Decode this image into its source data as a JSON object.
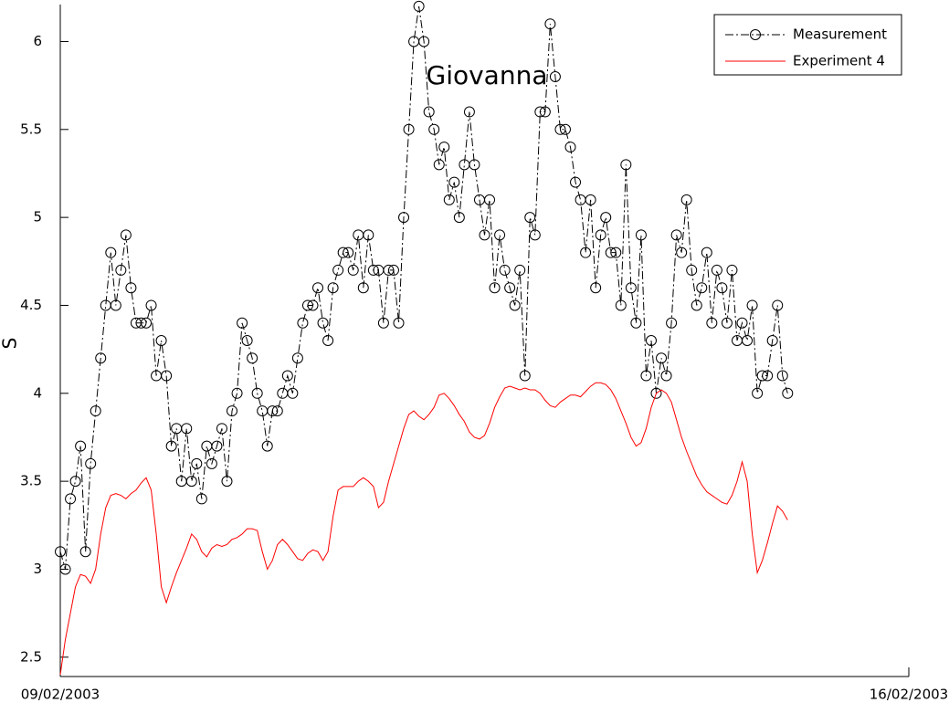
{
  "chart_data": {
    "type": "line",
    "ylabel": "S",
    "annotation": "Giovanna",
    "xlim": [
      0,
      168
    ],
    "xticks": [
      {
        "value": 0,
        "label": "09/02/2003"
      },
      {
        "value": 168,
        "label": "16/02/2003"
      }
    ],
    "ylim": [
      2.39,
      6.21
    ],
    "yticks": [
      {
        "value": 2.5,
        "label": "2.5"
      },
      3,
      {
        "value": 3.5,
        "label": "3.5"
      },
      4,
      {
        "value": 4.5,
        "label": "4.5"
      },
      5,
      {
        "value": 5.5,
        "label": "5.5"
      },
      6
    ],
    "legend": "upper right",
    "x": [
      0,
      1,
      2,
      3,
      4,
      5,
      6,
      7,
      8,
      9,
      10,
      11,
      12,
      13,
      14,
      15,
      16,
      17,
      18,
      19,
      20,
      21,
      22,
      23,
      24,
      25,
      26,
      27,
      28,
      29,
      30,
      31,
      32,
      33,
      34,
      35,
      36,
      37,
      38,
      39,
      40,
      41,
      42,
      43,
      44,
      45,
      46,
      47,
      48,
      49,
      50,
      51,
      52,
      53,
      54,
      55,
      56,
      57,
      58,
      59,
      60,
      61,
      62,
      63,
      64,
      65,
      66,
      67,
      68,
      69,
      70,
      71,
      72,
      73,
      74,
      75,
      76,
      77,
      78,
      79,
      80,
      81,
      82,
      83,
      84,
      85,
      86,
      87,
      88,
      89,
      90,
      91,
      92,
      93,
      94,
      95,
      96,
      97,
      98,
      99,
      100,
      101,
      102,
      103,
      104,
      105,
      106,
      107,
      108,
      109,
      110,
      111,
      112,
      113,
      114,
      115,
      116,
      117,
      118,
      119,
      120,
      121,
      122,
      123,
      124,
      125,
      126,
      127,
      128,
      129,
      130,
      131,
      132,
      133,
      134,
      135,
      136,
      137,
      138,
      139,
      140,
      141,
      142,
      143,
      144
    ],
    "series": [
      {
        "name": "Measurement",
        "color": "#000000",
        "linestyle": "-.",
        "marker": "o",
        "values": [
          3.1,
          3.0,
          3.4,
          3.5,
          3.7,
          3.1,
          3.6,
          3.9,
          4.2,
          4.5,
          4.8,
          4.5,
          4.7,
          4.9,
          4.6,
          4.4,
          4.4,
          4.4,
          4.5,
          4.1,
          4.3,
          4.1,
          3.7,
          3.8,
          3.5,
          3.8,
          3.5,
          3.6,
          3.4,
          3.7,
          3.6,
          3.7,
          3.8,
          3.5,
          3.9,
          4.0,
          4.4,
          4.3,
          4.2,
          4.0,
          3.9,
          3.7,
          3.9,
          3.9,
          4.0,
          4.1,
          4.0,
          4.2,
          4.4,
          4.5,
          4.5,
          4.6,
          4.4,
          4.3,
          4.6,
          4.7,
          4.8,
          4.8,
          4.7,
          4.9,
          4.6,
          4.9,
          4.7,
          4.7,
          4.4,
          4.7,
          4.7,
          4.4,
          5.0,
          5.5,
          6.0,
          6.2,
          6.0,
          5.6,
          5.5,
          5.3,
          5.4,
          5.1,
          5.2,
          5.0,
          5.3,
          5.6,
          5.3,
          5.1,
          4.9,
          5.1,
          4.6,
          4.9,
          4.7,
          4.6,
          4.5,
          4.7,
          4.1,
          5.0,
          4.9,
          5.6,
          5.6,
          6.1,
          5.8,
          5.5,
          5.5,
          5.4,
          5.2,
          5.1,
          4.8,
          5.1,
          4.6,
          4.9,
          5.0,
          4.8,
          4.8,
          4.5,
          5.3,
          4.6,
          4.4,
          4.9,
          4.1,
          4.3,
          4.0,
          4.2,
          4.1,
          4.4,
          4.9,
          4.8,
          5.1,
          4.7,
          4.5,
          4.6,
          4.8,
          4.4,
          4.7,
          4.6,
          4.4,
          4.7,
          4.3,
          4.4,
          4.3,
          4.5,
          4.0,
          4.1,
          4.1,
          4.3,
          4.5,
          4.1,
          4.0
        ]
      },
      {
        "name": "Experiment 4",
        "color": "#ff0000",
        "linestyle": "-",
        "marker": "none",
        "values": [
          2.4,
          2.6,
          2.75,
          2.9,
          2.97,
          2.96,
          2.92,
          3.0,
          3.2,
          3.35,
          3.42,
          3.43,
          3.42,
          3.4,
          3.43,
          3.45,
          3.49,
          3.52,
          3.45,
          3.2,
          2.9,
          2.81,
          2.9,
          2.98,
          3.05,
          3.12,
          3.2,
          3.17,
          3.1,
          3.07,
          3.12,
          3.14,
          3.13,
          3.14,
          3.17,
          3.18,
          3.2,
          3.23,
          3.23,
          3.22,
          3.1,
          3.0,
          3.05,
          3.14,
          3.17,
          3.14,
          3.1,
          3.06,
          3.05,
          3.09,
          3.11,
          3.1,
          3.05,
          3.1,
          3.3,
          3.45,
          3.47,
          3.47,
          3.47,
          3.5,
          3.52,
          3.5,
          3.47,
          3.35,
          3.38,
          3.5,
          3.6,
          3.7,
          3.8,
          3.88,
          3.9,
          3.87,
          3.85,
          3.88,
          3.92,
          3.99,
          4.0,
          3.97,
          3.93,
          3.88,
          3.84,
          3.78,
          3.75,
          3.74,
          3.76,
          3.83,
          3.92,
          3.98,
          4.03,
          4.04,
          4.03,
          4.02,
          4.03,
          4.02,
          4.02,
          4.0,
          3.96,
          3.93,
          3.92,
          3.95,
          3.97,
          3.99,
          3.99,
          3.98,
          4.01,
          4.04,
          4.06,
          4.06,
          4.05,
          4.02,
          3.97,
          3.9,
          3.83,
          3.75,
          3.7,
          3.72,
          3.8,
          3.92,
          4.0,
          4.02,
          4.0,
          3.95,
          3.85,
          3.75,
          3.67,
          3.6,
          3.53,
          3.48,
          3.44,
          3.42,
          3.4,
          3.38,
          3.37,
          3.42,
          3.5,
          3.61,
          3.5,
          3.2,
          2.98,
          3.05,
          3.15,
          3.26,
          3.36,
          3.33,
          3.28
        ]
      }
    ]
  }
}
